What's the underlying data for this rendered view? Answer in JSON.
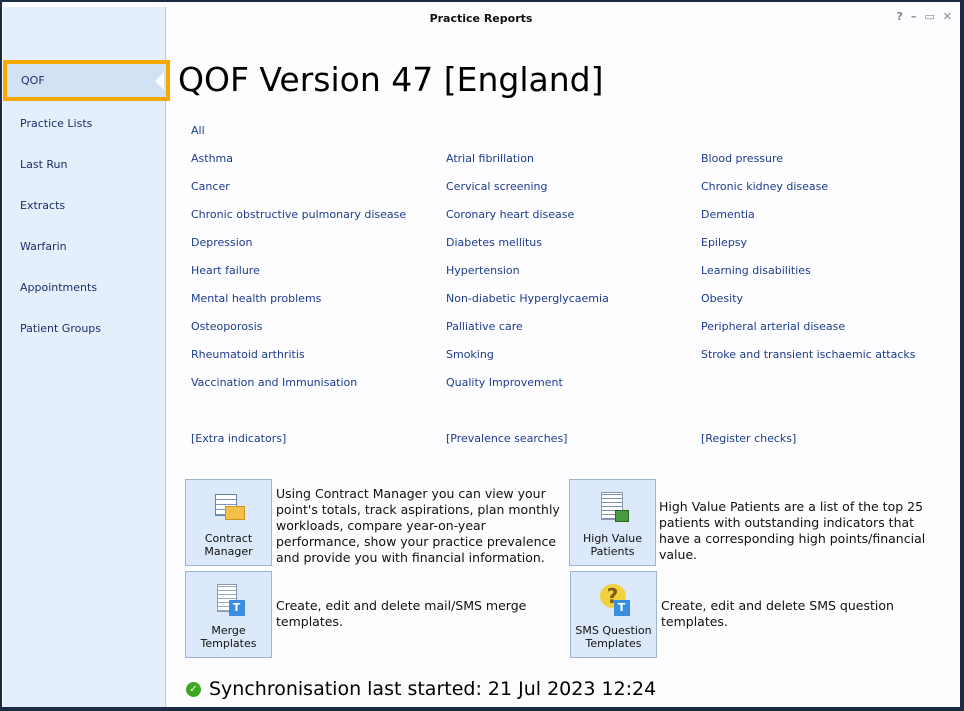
{
  "window": {
    "title": "Practice Reports",
    "controls": [
      "?",
      "–",
      "▭",
      "✕"
    ]
  },
  "sidebar": {
    "items": [
      {
        "label": "QOF",
        "selected": true
      },
      {
        "label": "Practice Lists"
      },
      {
        "label": "Last Run"
      },
      {
        "label": "Extracts"
      },
      {
        "label": "Warfarin"
      },
      {
        "label": "Appointments"
      },
      {
        "label": "Patient Groups"
      }
    ]
  },
  "main": {
    "heading": "QOF Version 47 [England]",
    "all": "All",
    "columns": [
      [
        "Asthma",
        "Cancer",
        "Chronic obstructive pulmonary disease",
        "Depression",
        "Heart failure",
        "Mental health problems",
        "Osteoporosis",
        "Rheumatoid arthritis",
        "Vaccination and Immunisation"
      ],
      [
        "Atrial fibrillation",
        "Cervical screening",
        "Coronary heart disease",
        "Diabetes mellitus",
        "Hypertension",
        "Non-diabetic Hyperglycaemia",
        "Palliative care",
        "Smoking",
        "Quality Improvement"
      ],
      [
        "Blood pressure",
        "Chronic kidney disease",
        "Dementia",
        "Epilepsy",
        "Learning disabilities",
        "Obesity",
        "Peripheral arterial disease",
        "Stroke and transient ischaemic attacks"
      ]
    ],
    "extras": [
      "[Extra indicators]",
      "[Prevalence searches]",
      "[Register checks]"
    ]
  },
  "tools": [
    {
      "label": "Contract Manager",
      "icon": "contract-manager-icon",
      "desc": "Using Contract Manager you can view your point's totals, track aspirations, plan monthly workloads, compare year-on-year performance, show your practice prevalence and provide you with financial information."
    },
    {
      "label": "Merge Templates",
      "icon": "merge-templates-icon",
      "desc": "Create, edit and delete mail/SMS merge templates."
    },
    {
      "label": "High Value Patients",
      "icon": "high-value-patients-icon",
      "desc": "High Value Patients are a list of the top 25 patients with outstanding indicators that have a corresponding high points/financial value."
    },
    {
      "label": "SMS Question Templates",
      "icon": "sms-question-templates-icon",
      "desc": "Create, edit and delete SMS question templates."
    }
  ],
  "status": {
    "text": "Synchronisation last started: 21 Jul 2023 12:24",
    "icon": "check-circle-icon",
    "color": "#3ea820"
  },
  "colors": {
    "accent": "#f6a800",
    "link": "#1c3d8c",
    "sidebar": "#e5eefb"
  }
}
